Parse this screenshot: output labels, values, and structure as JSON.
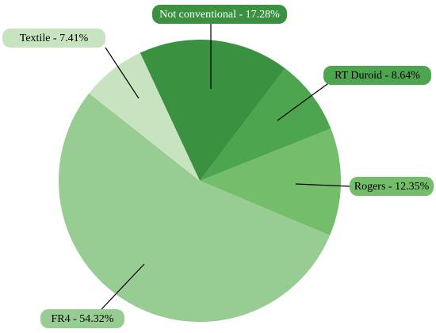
{
  "chart_data": {
    "type": "pie",
    "title": "",
    "slices": [
      {
        "label": "Not conventional",
        "value": 17.28,
        "display": "Not conventional - 17.28%",
        "color": "#3a913f",
        "label_bg": "#3a913f",
        "label_fg": "#ffffff"
      },
      {
        "label": "RT Duroid",
        "value": 8.64,
        "display": "RT Duroid - 8.64%",
        "color": "#4ea54f",
        "label_bg": "#4ea54f",
        "label_fg": "#000000"
      },
      {
        "label": "Rogers",
        "value": 12.35,
        "display": "Rogers - 12.35%",
        "color": "#73bd6b",
        "label_bg": "#73bd6b",
        "label_fg": "#000000"
      },
      {
        "label": "FR4",
        "value": 54.32,
        "display": "FR4 - 54.32%",
        "color": "#97cc92",
        "label_bg": "#97cc92",
        "label_fg": "#000000"
      },
      {
        "label": "Textile",
        "value": 7.41,
        "display": "Textile - 7.41%",
        "color": "#c8e3c0",
        "label_bg": "#c8e3c0",
        "label_fg": "#000000"
      }
    ],
    "legend": "none (callout labels on slices)"
  }
}
